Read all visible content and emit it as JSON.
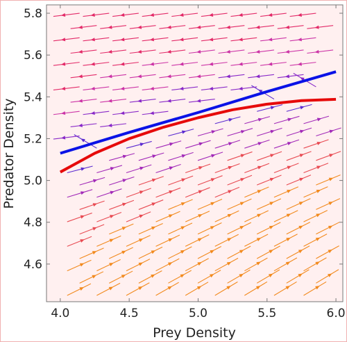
{
  "chart_data": {
    "type": "streamplot",
    "title": "",
    "xlabel": "Prey Density",
    "ylabel": "Predator Density",
    "xlim": [
      3.9,
      6.05
    ],
    "ylim": [
      4.42,
      5.84
    ],
    "xticks": [
      4.0,
      4.5,
      5.0,
      5.5,
      6.0
    ],
    "yticks": [
      4.6,
      4.8,
      5.0,
      5.2,
      5.4,
      5.6,
      5.8
    ],
    "xtick_labels": [
      "4.0",
      "4.5",
      "5.0",
      "5.5",
      "6.0"
    ],
    "ytick_labels": [
      "4.6",
      "4.8",
      "5.0",
      "5.2",
      "5.4",
      "5.6",
      "5.8"
    ],
    "grid": false,
    "series": [
      {
        "color": "#0a12e6",
        "x": [
          4.0,
          4.5,
          5.0,
          5.5,
          6.0
        ],
        "y": [
          5.13,
          5.23,
          5.325,
          5.425,
          5.52
        ]
      },
      {
        "color": "#e60a0a",
        "x": [
          4.0,
          4.25,
          4.5,
          4.75,
          5.0,
          5.25,
          5.5,
          5.75,
          6.0
        ],
        "y": [
          5.04,
          5.13,
          5.2,
          5.255,
          5.3,
          5.338,
          5.365,
          5.382,
          5.388
        ]
      }
    ],
    "vector_field": {
      "colors": [
        "#e32a68",
        "#cc33a6",
        "#8828c8",
        "#5a2ad0",
        "#a22ab8",
        "#e84a52",
        "#f28a1e"
      ]
    }
  },
  "colors": {
    "background": "#fff0f0",
    "frame": "#777777",
    "outer_border": "#f0b0b0"
  }
}
